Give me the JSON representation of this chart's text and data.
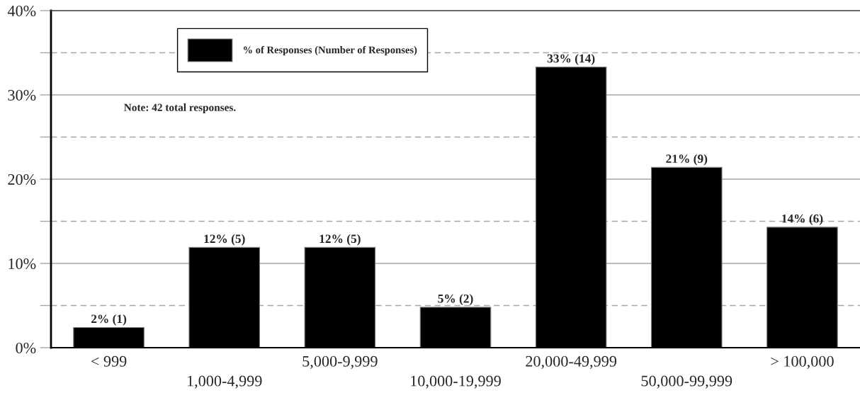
{
  "chart_data": {
    "type": "bar",
    "categories": [
      "< 999",
      "1,000-4,999",
      "5,000-9,999",
      "10,000-19,999",
      "20,000-49,999",
      "50,000-99,999",
      "> 100,000"
    ],
    "series": [
      {
        "name": "% of Responses (Number of Responses)",
        "color": "#000000",
        "values": [
          2.4,
          11.9,
          11.9,
          4.8,
          33.3,
          21.4,
          14.3
        ],
        "value_labels": [
          "2% (1)",
          "12% (5)",
          "12% (5)",
          "5% (2)",
          "33% (14)",
          "21% (9)",
          "14% (6)"
        ]
      }
    ],
    "ylim": [
      0,
      40
    ],
    "yticks": [
      {
        "value": 0,
        "label": "0%"
      },
      {
        "value": 5,
        "label": null
      },
      {
        "value": 10,
        "label": "10%"
      },
      {
        "value": 15,
        "label": null
      },
      {
        "value": 20,
        "label": "20%"
      },
      {
        "value": 25,
        "label": null
      },
      {
        "value": 30,
        "label": "30%"
      },
      {
        "value": 35,
        "label": null
      },
      {
        "value": 40,
        "label": "40%"
      }
    ],
    "grid": "y",
    "legend": "top left",
    "annotations": [
      "Note: 42 total responses."
    ]
  }
}
